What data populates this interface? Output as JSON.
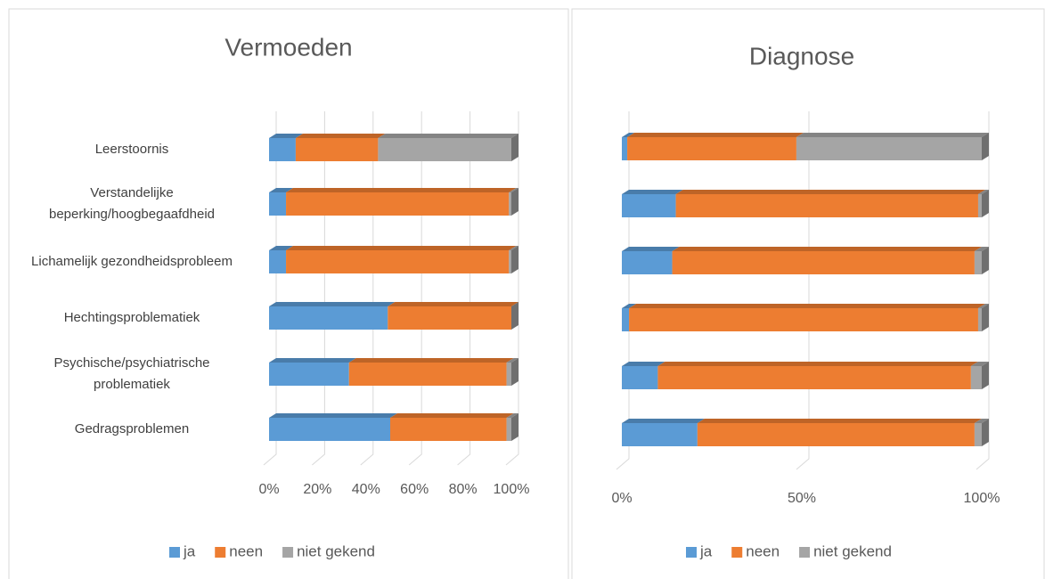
{
  "chart_data": [
    {
      "type": "bar",
      "orientation": "horizontal",
      "stacked": true,
      "title": "Vermoeden",
      "categories": [
        "Leerstoornis",
        "Verstandelijke beperking/hoogbegaafdheid",
        "Lichamelijk gezondheidsprobleem",
        "Hechtingsproblematiek",
        "Psychische/psychiatrische problematiek",
        "Gedragsproblemen"
      ],
      "series": [
        {
          "name": "ja",
          "color": "#5b9bd5",
          "values": [
            11,
            7,
            7,
            49,
            33,
            50
          ]
        },
        {
          "name": "neen",
          "color": "#ed7d31",
          "values": [
            34,
            92,
            92,
            51,
            65,
            48
          ]
        },
        {
          "name": "niet gekend",
          "color": "#a5a5a5",
          "values": [
            55,
            1,
            1,
            0,
            2,
            2
          ]
        }
      ],
      "xlim": [
        0,
        100
      ],
      "xticks": [
        {
          "value": 0,
          "label": "0%"
        },
        {
          "value": 20,
          "label": "20%"
        },
        {
          "value": 40,
          "label": "40%"
        },
        {
          "value": 60,
          "label": "60%"
        },
        {
          "value": 80,
          "label": "80%"
        },
        {
          "value": 100,
          "label": "100%"
        }
      ],
      "grid": true,
      "legend": "bottom"
    },
    {
      "type": "bar",
      "orientation": "horizontal",
      "stacked": true,
      "title": "Diagnose",
      "categories": [
        null,
        null,
        null,
        null,
        null,
        null
      ],
      "series": [
        {
          "name": "ja",
          "color": "#5b9bd5",
          "values": [
            1.5,
            15,
            14,
            2,
            10,
            21
          ]
        },
        {
          "name": "neen",
          "color": "#ed7d31",
          "values": [
            47,
            84,
            84,
            97,
            87,
            77
          ]
        },
        {
          "name": "niet gekend",
          "color": "#a5a5a5",
          "values": [
            51.5,
            1,
            2,
            1,
            3,
            2
          ]
        }
      ],
      "xlim": [
        0,
        100
      ],
      "xticks": [
        {
          "value": 0,
          "label": "0%"
        },
        {
          "value": 50,
          "label": "50%"
        },
        {
          "value": 100,
          "label": "100%"
        }
      ],
      "grid": true,
      "legend": "bottom"
    }
  ]
}
